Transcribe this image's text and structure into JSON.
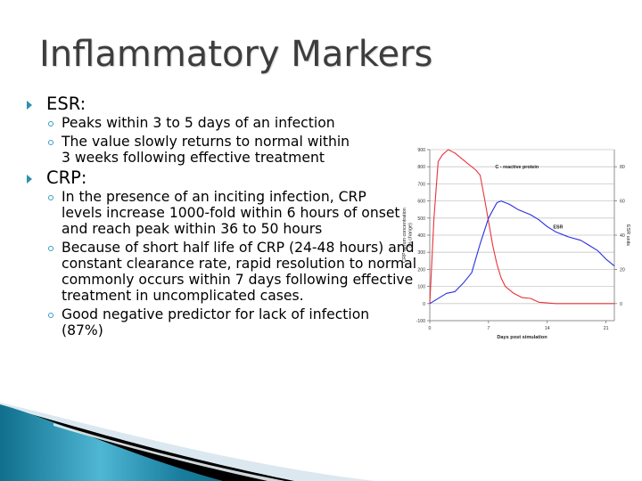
{
  "slide": {
    "title": "Inflammatory Markers",
    "accent_color": "#2d8fb0",
    "bullets": [
      {
        "label": "ESR:",
        "subitems": [
          "Peaks within 3 to 5 days of an infection",
          "The value slowly returns to normal within 3 weeks following effective treatment"
        ]
      },
      {
        "label": "CRP:",
        "subitems": [
          "In the presence of an inciting infection, CRP levels increase 1000-fold within 6 hours of onset and reach peak within 36 to 50 hours",
          "Because of short half life of CRP (24-48 hours) and constant clearance rate, rapid resolution to normal commonly occurs within 7 days following effective treatment in uncomplicated cases.",
          "Good negative predictor for lack of infection (87%)"
        ]
      }
    ]
  },
  "chart_data": {
    "type": "line",
    "title": "",
    "xlabel": "Days post simulation",
    "ylabel": "CRP serum concentration (% change)",
    "y2label": "ESR units",
    "xlim": [
      0,
      22
    ],
    "ylim": [
      -100,
      900
    ],
    "y2lim": [
      -10,
      90
    ],
    "xticks": [
      0,
      7,
      14,
      21
    ],
    "yticks": [
      -100,
      0,
      100,
      200,
      300,
      400,
      500,
      600,
      700,
      800,
      900
    ],
    "y2ticks": [
      0,
      20,
      40,
      60,
      80
    ],
    "grid": true,
    "annotations": [
      {
        "text": "C - reactive protein",
        "x": 7.8,
        "y": 790
      },
      {
        "text": "ESR",
        "x": 14.7,
        "y": 440
      }
    ],
    "series": [
      {
        "name": "C - reactive protein",
        "axis": "left",
        "color": "#e8333a",
        "x": [
          0,
          0.5,
          1,
          1.5,
          2.2,
          3,
          4.5,
          5.5,
          6,
          6.5,
          7,
          7.5,
          8,
          8.5,
          9,
          10,
          11,
          12,
          13,
          15,
          22
        ],
        "values": [
          0,
          500,
          830,
          870,
          900,
          880,
          820,
          780,
          750,
          620,
          480,
          340,
          230,
          150,
          100,
          60,
          35,
          30,
          8,
          0,
          0
        ]
      },
      {
        "name": "ESR",
        "axis": "right",
        "color": "#2a2ee0",
        "x": [
          0,
          2,
          3,
          4,
          5,
          6,
          7,
          8,
          8.5,
          9.5,
          10.5,
          12,
          13,
          14,
          15,
          16.5,
          18,
          19,
          20,
          21,
          22
        ],
        "values": [
          0,
          6,
          7,
          12,
          18,
          35,
          50,
          59,
          60,
          58,
          55,
          52,
          49,
          45,
          42,
          39,
          37,
          34,
          31,
          26,
          22
        ]
      }
    ]
  }
}
